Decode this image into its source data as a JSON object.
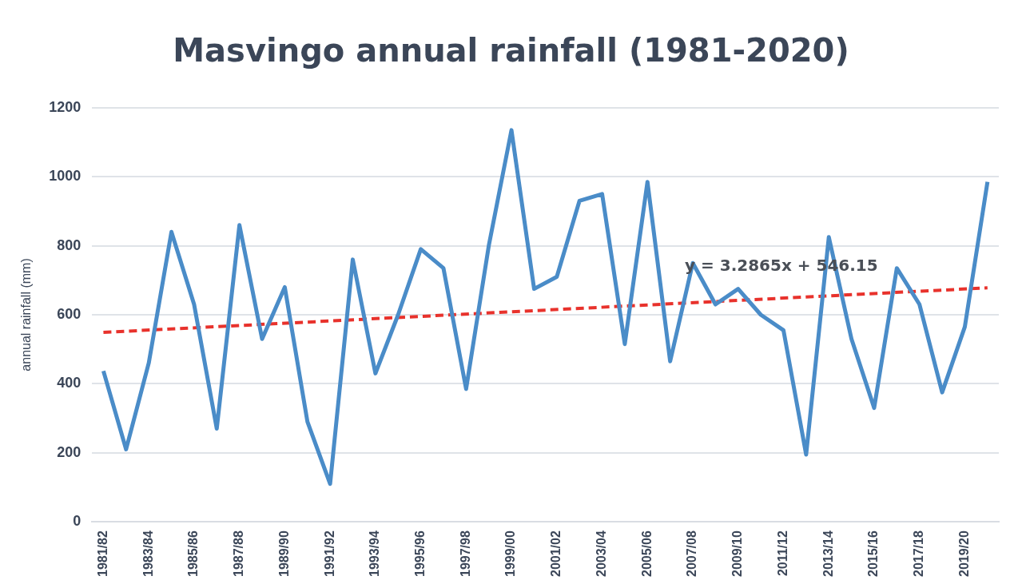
{
  "chart_data": {
    "type": "line",
    "title": "Masvingo annual rainfall (1981-2020)",
    "ylabel": "annual rainfall (mm)",
    "categories": [
      "1981/82",
      null,
      "1983/84",
      null,
      "1985/86",
      null,
      "1987/88",
      null,
      "1989/90",
      null,
      "1991/92",
      null,
      "1993/94",
      null,
      "1995/96",
      null,
      "1997/98",
      null,
      "1999/00",
      null,
      "2001/02",
      null,
      "2003/04",
      null,
      "2005/06",
      null,
      "2007/08",
      null,
      "2009/10",
      null,
      "2011/12",
      null,
      "2013/14",
      null,
      "2015/16",
      null,
      "2017/18",
      null,
      "2019/20",
      null
    ],
    "series": [
      {
        "color": "#4a8cc8",
        "values": [
          437,
          210,
          460,
          840,
          630,
          270,
          860,
          530,
          680,
          290,
          110,
          760,
          430,
          600,
          790,
          735,
          385,
          800,
          1135,
          675,
          710,
          930,
          950,
          515,
          985,
          465,
          750,
          630,
          675,
          600,
          555,
          195,
          825,
          530,
          330,
          735,
          630,
          375,
          565,
          985
        ]
      },
      {
        "type": "line",
        "color": "#e8322c",
        "line_style": "dashed",
        "values": [
          549,
          null,
          null,
          null,
          null,
          null,
          null,
          null,
          null,
          null,
          null,
          null,
          null,
          null,
          null,
          null,
          null,
          null,
          null,
          null,
          null,
          null,
          null,
          null,
          null,
          null,
          null,
          null,
          null,
          null,
          null,
          null,
          null,
          null,
          null,
          null,
          null,
          null,
          null,
          678
        ]
      }
    ],
    "ylim": [
      0,
      1200
    ],
    "yticks": [
      0,
      200,
      400,
      600,
      800,
      1000,
      1200
    ],
    "grid": "y",
    "legend": false,
    "marker": "none",
    "line_style": "solid",
    "annotations": [
      {
        "text": "y = 3.2865x + 546.15",
        "x": "2007/08",
        "y": 740
      }
    ]
  }
}
